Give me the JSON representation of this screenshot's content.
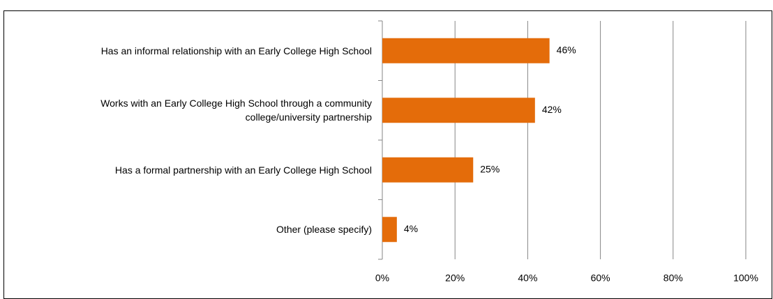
{
  "chart_data": {
    "type": "bar",
    "orientation": "horizontal",
    "categories": [
      "Has an informal relationship with an Early College High School",
      "Works with an Early College High School through a community college/university partnership",
      "Has a formal partnership with an Early College High School",
      "Other (please specify)"
    ],
    "values": [
      46,
      42,
      25,
      4
    ],
    "value_labels": [
      "46%",
      "42%",
      "25%",
      "4%"
    ],
    "color": "#e46c0a",
    "xlim": [
      0,
      100
    ],
    "xticks": [
      {
        "value": 0,
        "label": "0%"
      },
      {
        "value": 20,
        "label": "20%"
      },
      {
        "value": 40,
        "label": "40%"
      },
      {
        "value": 60,
        "label": "60%"
      },
      {
        "value": 80,
        "label": "80%"
      },
      {
        "value": 100,
        "label": "100%"
      }
    ],
    "grid": true
  }
}
